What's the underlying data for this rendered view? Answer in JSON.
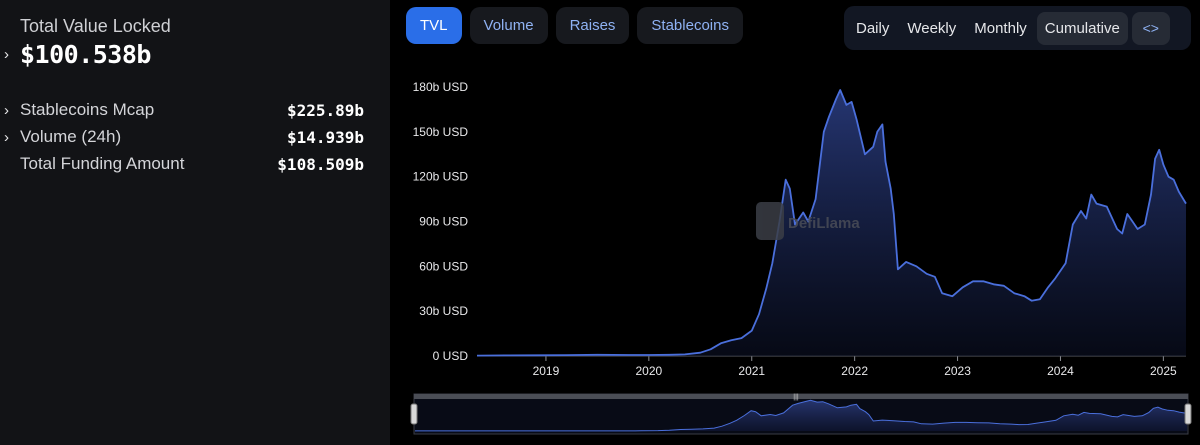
{
  "stats": {
    "tvl_label": "Total Value Locked",
    "tvl_value": "$100.538b",
    "metrics": [
      {
        "label": "Stablecoins Mcap",
        "value": "$225.89b",
        "expandable": true
      },
      {
        "label": "Volume (24h)",
        "value": "$14.939b",
        "expandable": true
      },
      {
        "label": "Total Funding Amount",
        "value": "$108.509b",
        "expandable": false
      }
    ]
  },
  "tabs": {
    "items": [
      "TVL",
      "Volume",
      "Raises",
      "Stablecoins"
    ],
    "active": "TVL"
  },
  "periods": {
    "items": [
      "Daily",
      "Weekly",
      "Monthly",
      "Cumulative"
    ],
    "active": "Cumulative",
    "embed_icon": "<>"
  },
  "watermark": "DefiLlama",
  "colors": {
    "line": "#4a6fdc",
    "active_tab": "#2a6ee8",
    "tab_text": "#8fb2f3"
  },
  "chart_data": {
    "type": "area",
    "title": "",
    "xlabel": "",
    "ylabel": "",
    "x_unit": "year",
    "y_unit": "USD",
    "y_ticks": [
      "0 USD",
      "30b USD",
      "60b USD",
      "90b USD",
      "120b USD",
      "150b USD",
      "180b USD"
    ],
    "x_ticks": [
      "2019",
      "2020",
      "2021",
      "2022",
      "2023",
      "2024",
      "2025"
    ],
    "ylim": [
      0,
      180
    ],
    "xlim": [
      2018.33,
      2025.22
    ],
    "grid": false,
    "series": [
      {
        "points": [
          [
            2018.33,
            0.3
          ],
          [
            2018.6,
            0.4
          ],
          [
            2018.9,
            0.5
          ],
          [
            2019.2,
            0.6
          ],
          [
            2019.5,
            0.8
          ],
          [
            2019.8,
            0.7
          ],
          [
            2020.0,
            0.7
          ],
          [
            2020.2,
            0.8
          ],
          [
            2020.35,
            1.1
          ],
          [
            2020.5,
            2.2
          ],
          [
            2020.6,
            4.5
          ],
          [
            2020.7,
            8.5
          ],
          [
            2020.8,
            10.5
          ],
          [
            2020.9,
            12
          ],
          [
            2021.0,
            17
          ],
          [
            2021.07,
            28
          ],
          [
            2021.14,
            45
          ],
          [
            2021.2,
            62
          ],
          [
            2021.27,
            90
          ],
          [
            2021.33,
            118
          ],
          [
            2021.37,
            112
          ],
          [
            2021.42,
            88
          ],
          [
            2021.5,
            96
          ],
          [
            2021.55,
            90
          ],
          [
            2021.62,
            105
          ],
          [
            2021.7,
            150
          ],
          [
            2021.75,
            160
          ],
          [
            2021.82,
            172
          ],
          [
            2021.86,
            178
          ],
          [
            2021.92,
            168
          ],
          [
            2021.97,
            170
          ],
          [
            2022.02,
            158
          ],
          [
            2022.1,
            135
          ],
          [
            2022.18,
            140
          ],
          [
            2022.22,
            150
          ],
          [
            2022.27,
            155
          ],
          [
            2022.3,
            130
          ],
          [
            2022.35,
            112
          ],
          [
            2022.38,
            95
          ],
          [
            2022.42,
            58
          ],
          [
            2022.5,
            63
          ],
          [
            2022.6,
            60
          ],
          [
            2022.7,
            55
          ],
          [
            2022.78,
            53
          ],
          [
            2022.85,
            42
          ],
          [
            2022.95,
            40
          ],
          [
            2023.05,
            46
          ],
          [
            2023.15,
            50
          ],
          [
            2023.25,
            50
          ],
          [
            2023.35,
            48
          ],
          [
            2023.45,
            47
          ],
          [
            2023.55,
            42
          ],
          [
            2023.65,
            40
          ],
          [
            2023.72,
            37
          ],
          [
            2023.8,
            38
          ],
          [
            2023.88,
            46
          ],
          [
            2023.95,
            52
          ],
          [
            2024.05,
            62
          ],
          [
            2024.12,
            88
          ],
          [
            2024.2,
            97
          ],
          [
            2024.25,
            92
          ],
          [
            2024.3,
            108
          ],
          [
            2024.35,
            102
          ],
          [
            2024.45,
            100
          ],
          [
            2024.55,
            85
          ],
          [
            2024.6,
            82
          ],
          [
            2024.65,
            95
          ],
          [
            2024.7,
            90
          ],
          [
            2024.75,
            85
          ],
          [
            2024.82,
            88
          ],
          [
            2024.88,
            108
          ],
          [
            2024.92,
            132
          ],
          [
            2024.96,
            138
          ],
          [
            2025.0,
            128
          ],
          [
            2025.05,
            120
          ],
          [
            2025.1,
            118
          ],
          [
            2025.15,
            110
          ],
          [
            2025.22,
            102
          ]
        ]
      }
    ]
  }
}
